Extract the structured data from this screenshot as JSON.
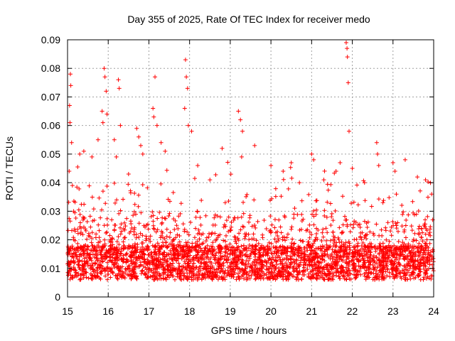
{
  "chart_data": {
    "type": "scatter",
    "title": "Day 355 of 2025, Rate Of TEC Index for receiver medo",
    "xlabel": "GPS time / hours",
    "ylabel": "ROTI / TECUs",
    "xlim": [
      15,
      24
    ],
    "ylim": [
      0,
      0.09
    ],
    "x_ticks": [
      15,
      16,
      17,
      18,
      19,
      20,
      21,
      22,
      23,
      24
    ],
    "y_ticks": [
      0,
      0.01,
      0.02,
      0.03,
      0.04,
      0.05,
      0.06,
      0.07,
      0.08,
      0.09
    ],
    "y_tick_labels": [
      "0",
      "0.01",
      "0.02",
      "0.03",
      "0.04",
      "0.05",
      "0.06",
      "0.07",
      "0.08",
      "0.09"
    ],
    "grid": true,
    "marker": "+",
    "color": "#ff0000",
    "series": [
      {
        "values_note_excluded": true,
        "points": [
          [
            15.05,
            0.067
          ],
          [
            15.07,
            0.078
          ],
          [
            15.08,
            0.074
          ],
          [
            15.06,
            0.061
          ],
          [
            15.1,
            0.054
          ],
          [
            15.04,
            0.044
          ],
          [
            15.12,
            0.039
          ],
          [
            15.15,
            0.03
          ],
          [
            15.3,
            0.05
          ],
          [
            15.4,
            0.051
          ],
          [
            15.6,
            0.049
          ],
          [
            15.75,
            0.055
          ],
          [
            15.9,
            0.08
          ],
          [
            15.92,
            0.077
          ],
          [
            15.95,
            0.072
          ],
          [
            15.97,
            0.064
          ],
          [
            15.85,
            0.065
          ],
          [
            15.87,
            0.061
          ],
          [
            16.2,
            0.049
          ],
          [
            16.25,
            0.076
          ],
          [
            16.27,
            0.073
          ],
          [
            16.3,
            0.06
          ],
          [
            16.15,
            0.055
          ],
          [
            16.5,
            0.043
          ],
          [
            16.7,
            0.059
          ],
          [
            16.75,
            0.056
          ],
          [
            16.8,
            0.053
          ],
          [
            16.85,
            0.05
          ],
          [
            17.1,
            0.066
          ],
          [
            17.12,
            0.063
          ],
          [
            17.15,
            0.077
          ],
          [
            17.2,
            0.06
          ],
          [
            17.3,
            0.054
          ],
          [
            17.4,
            0.051
          ],
          [
            17.9,
            0.083
          ],
          [
            17.92,
            0.077
          ],
          [
            17.95,
            0.073
          ],
          [
            17.88,
            0.066
          ],
          [
            17.97,
            0.06
          ],
          [
            18.05,
            0.058
          ],
          [
            18.2,
            0.046
          ],
          [
            18.5,
            0.041
          ],
          [
            18.8,
            0.052
          ],
          [
            19.2,
            0.065
          ],
          [
            19.25,
            0.062
          ],
          [
            19.3,
            0.058
          ],
          [
            19.28,
            0.049
          ],
          [
            19.6,
            0.053
          ],
          [
            20.0,
            0.046
          ],
          [
            20.3,
            0.044
          ],
          [
            20.5,
            0.047
          ],
          [
            20.7,
            0.04
          ],
          [
            21.0,
            0.05
          ],
          [
            21.05,
            0.048
          ],
          [
            21.3,
            0.041
          ],
          [
            21.6,
            0.044
          ],
          [
            21.85,
            0.089
          ],
          [
            21.87,
            0.087
          ],
          [
            21.88,
            0.084
          ],
          [
            21.9,
            0.075
          ],
          [
            21.92,
            0.058
          ],
          [
            21.7,
            0.047
          ],
          [
            22.0,
            0.045
          ],
          [
            22.3,
            0.04
          ],
          [
            22.6,
            0.054
          ],
          [
            22.62,
            0.05
          ],
          [
            22.65,
            0.046
          ],
          [
            23.0,
            0.047
          ],
          [
            23.05,
            0.044
          ],
          [
            23.3,
            0.048
          ],
          [
            23.6,
            0.042
          ],
          [
            23.8,
            0.041
          ],
          [
            23.95,
            0.036
          ]
        ]
      }
    ]
  }
}
